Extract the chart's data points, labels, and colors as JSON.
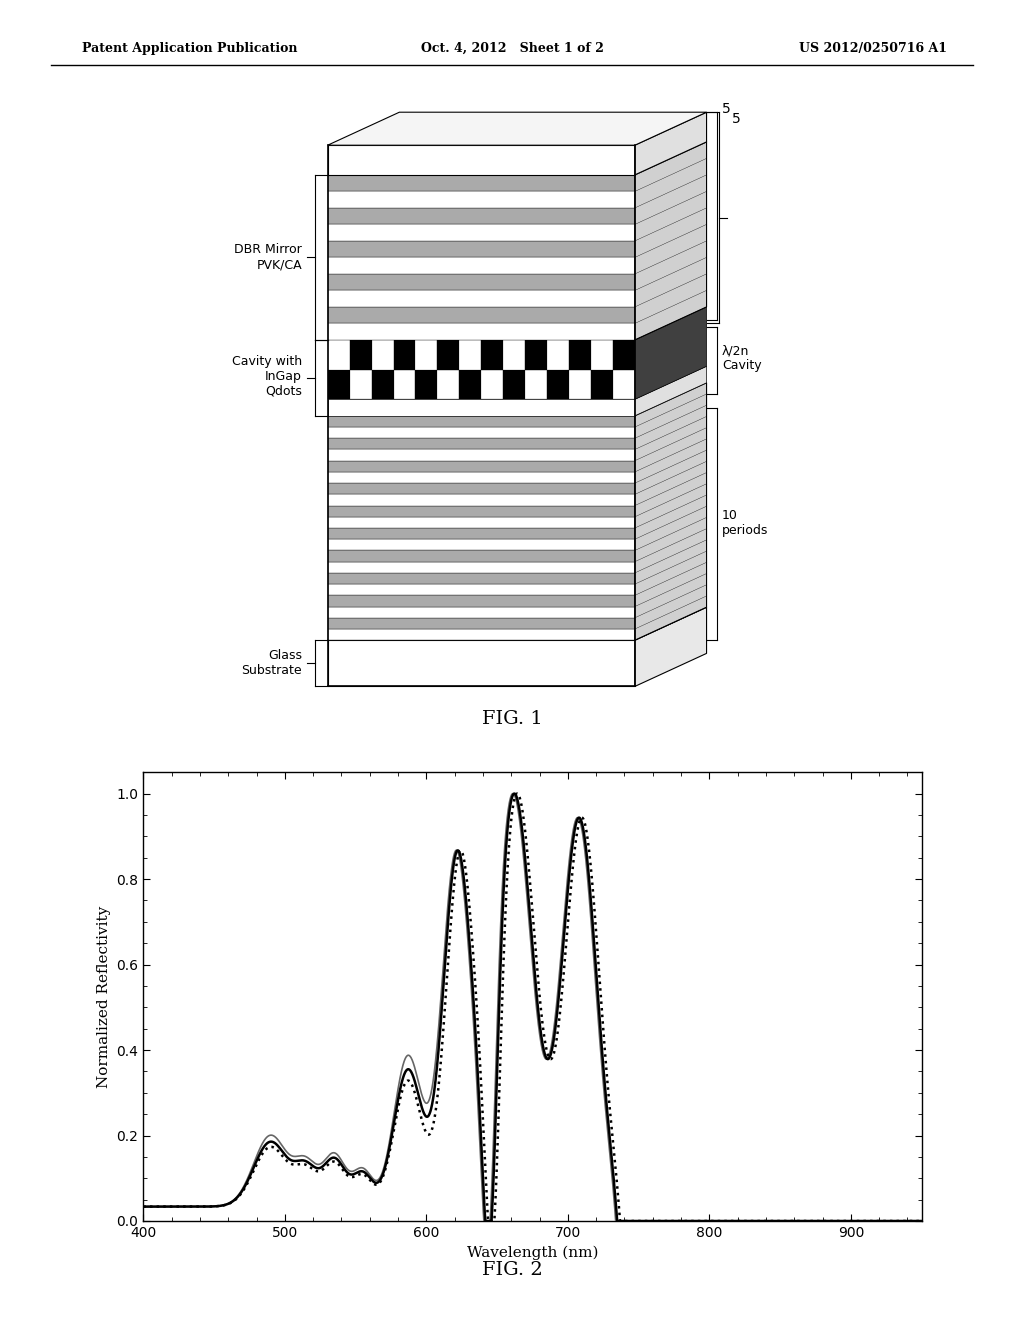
{
  "header_left": "Patent Application Publication",
  "header_center": "Oct. 4, 2012   Sheet 1 of 2",
  "header_right": "US 2012/0250716 A1",
  "fig1_caption": "FIG. 1",
  "fig2_caption": "FIG. 2",
  "fig2_xlabel": "Wavelength (nm)",
  "fig2_ylabel": "Normalized Reflectivity",
  "fig2_xlim": [
    400,
    950
  ],
  "fig2_ylim": [
    0.0,
    1.05
  ],
  "fig2_xticks": [
    400,
    500,
    600,
    700,
    800,
    900
  ],
  "fig2_yticks": [
    0.0,
    0.2,
    0.4,
    0.6,
    0.8,
    1.0
  ],
  "background_color": "#ffffff"
}
